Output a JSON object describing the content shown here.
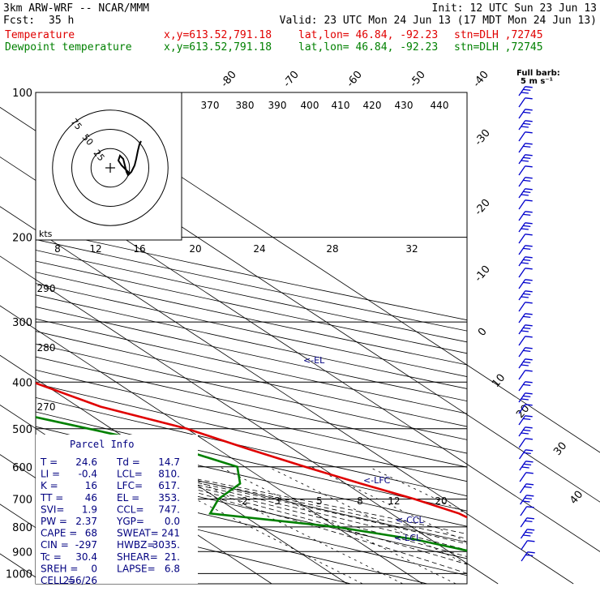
{
  "header": {
    "model": "3km ARW-WRF -- NCAR/MMM",
    "init": "Init: 12 UTC Sun 23 Jun 13",
    "fcst_label": "Fcst:",
    "fcst_value": "35 h",
    "valid": "Valid: 23 UTC Mon 24 Jun 13 (17 MDT Mon 24 Jun 13)",
    "line_temp": {
      "label": "Temperature",
      "xy": "x,y=613.52,791.18",
      "latlon": "lat,lon= 46.84, -92.23",
      "stn": "stn=DLH ,72745"
    },
    "line_dew": {
      "label": "Dewpoint temperature",
      "xy": "x,y=613.52,791.18",
      "latlon": "lat,lon= 46.84, -92.23",
      "stn": "stn=DLH ,72745"
    }
  },
  "colors": {
    "temperature": "#e00000",
    "dewpoint": "#008000",
    "wind": "#0000cc",
    "parcel": "#000080"
  },
  "wind_legend": {
    "title": "Full barb:",
    "value": "5 m s⁻¹"
  },
  "hodograph": {
    "unit": "kts",
    "rings": [
      "25",
      "50",
      "75"
    ]
  },
  "parcel": {
    "title": "Parcel Info",
    "rows": [
      [
        "T  =",
        "24.6",
        "Td =",
        "14.7"
      ],
      [
        "LI =",
        "-0.4",
        "LCL=",
        "810."
      ],
      [
        "K  =",
        "16",
        "LFC=",
        "617."
      ],
      [
        "TT =",
        "46",
        "EL =",
        "353."
      ],
      [
        "SVI=",
        "1.9",
        "CCL=",
        "747."
      ],
      [
        "PW =",
        "2.37",
        "YGP=",
        "0.0"
      ],
      [
        "CAPE =",
        "68",
        "SWEAT=",
        "241"
      ],
      [
        "CIN =",
        "-297",
        "HWBZ=",
        "3035."
      ],
      [
        "Tc =",
        "30.4",
        "SHEAR=",
        "21."
      ],
      [
        "SREH =",
        "0",
        "LAPSE=",
        "6.8"
      ],
      [
        "CELL =",
        "256/26",
        "",
        ""
      ]
    ]
  },
  "chart_data": {
    "type": "line",
    "skew_t_log_p": true,
    "pressure_levels": [
      "100",
      "200",
      "300",
      "400",
      "500",
      "600",
      "700",
      "800",
      "900",
      "1000"
    ],
    "isotherm_labels": [
      "-80",
      "-70",
      "-60",
      "-50",
      "-40",
      "-30",
      "-20",
      "-10",
      "0",
      "10",
      "20",
      "30",
      "40"
    ],
    "theta_labels": [
      "370",
      "380",
      "390",
      "400",
      "410",
      "420",
      "430",
      "440",
      "290",
      "280",
      "270"
    ],
    "mixing_ratio_top_labels": [
      "8",
      "12",
      "16",
      "20",
      "24",
      "28",
      "32"
    ],
    "mixing_ratio_low_labels": [
      "2",
      "3",
      "5",
      "8",
      "12",
      "20"
    ],
    "level_markers": [
      "<-EL",
      "<-LFC",
      "<-CCL",
      "<-LCL"
    ],
    "series": [
      {
        "name": "Temperature",
        "p": [
          100,
          150,
          200,
          250,
          300,
          350,
          400,
          450,
          500,
          550,
          600,
          650,
          700,
          750,
          800,
          850,
          900,
          950
        ],
        "t": [
          -57,
          -57,
          -53,
          -43,
          -30,
          -20,
          -11,
          -7,
          0,
          4,
          8,
          12,
          16,
          19,
          20,
          21,
          23,
          25
        ]
      },
      {
        "name": "Dewpoint temperature",
        "p": [
          100,
          150,
          200,
          220,
          250,
          300,
          350,
          400,
          420,
          450,
          500,
          550,
          600,
          650,
          700,
          750,
          800,
          850,
          900,
          950
        ],
        "td": [
          -80,
          -90,
          -68,
          -62,
          -65,
          -40,
          -34,
          -27,
          -22,
          -22,
          -13,
          -5,
          -1,
          -4,
          -10,
          -14,
          0,
          8,
          13,
          15
        ]
      }
    ]
  }
}
